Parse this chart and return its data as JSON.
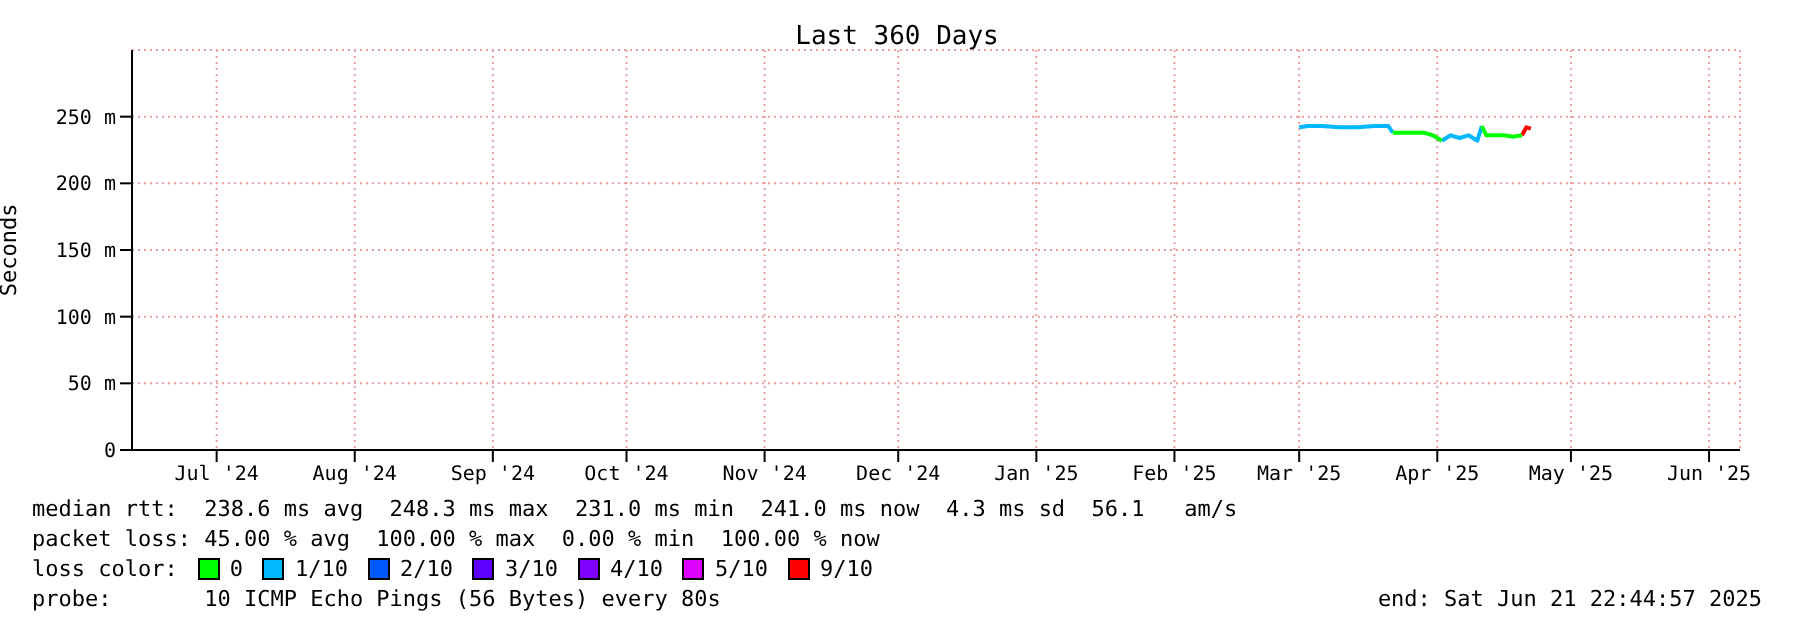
{
  "chart_data": {
    "type": "line",
    "title": "Last 360 Days",
    "ylabel": "Seconds",
    "x": [
      "2025-03-15",
      "2025-03-17",
      "2025-03-20",
      "2025-03-24",
      "2025-03-28",
      "2025-04-01",
      "2025-04-04",
      "2025-04-05",
      "2025-04-08",
      "2025-04-12",
      "2025-04-14",
      "2025-04-16",
      "2025-04-18",
      "2025-04-20",
      "2025-04-22",
      "2025-04-24",
      "2025-04-25",
      "2025-04-26",
      "2025-04-28",
      "2025-04-30",
      "2025-05-02",
      "2025-05-04",
      "2025-05-05",
      "2025-05-06"
    ],
    "series": [
      {
        "name": "0",
        "color": "#00ff00",
        "values": [
          null,
          null,
          null,
          null,
          null,
          null,
          null,
          238,
          238,
          238,
          236,
          232,
          null,
          null,
          null,
          null,
          243,
          236,
          236,
          236,
          235,
          236,
          null,
          null
        ]
      },
      {
        "name": "1/10",
        "color": "#00b8ff",
        "values": [
          242,
          243,
          243,
          242,
          242,
          243,
          243,
          238,
          null,
          null,
          null,
          232,
          236,
          234,
          236,
          232,
          243,
          null,
          null,
          null,
          null,
          null,
          null,
          null
        ]
      },
      {
        "name": "2/10",
        "color": "#0059ff",
        "values": [
          null,
          null,
          null,
          null,
          null,
          null,
          null,
          null,
          null,
          null,
          null,
          null,
          null,
          null,
          null,
          null,
          null,
          null,
          null,
          null,
          null,
          null,
          null,
          null
        ]
      },
      {
        "name": "3/10",
        "color": "#5e00ff",
        "values": [
          null,
          null,
          null,
          null,
          null,
          null,
          null,
          null,
          null,
          null,
          null,
          null,
          null,
          null,
          null,
          null,
          null,
          null,
          null,
          null,
          null,
          null,
          null,
          null
        ]
      },
      {
        "name": "4/10",
        "color": "#7e00ff",
        "values": [
          null,
          null,
          null,
          null,
          null,
          null,
          null,
          null,
          null,
          null,
          null,
          null,
          null,
          null,
          null,
          null,
          null,
          null,
          null,
          null,
          null,
          null,
          null,
          null
        ]
      },
      {
        "name": "5/10",
        "color": "#dd00ff",
        "values": [
          null,
          null,
          null,
          null,
          null,
          null,
          null,
          null,
          null,
          null,
          null,
          null,
          null,
          null,
          null,
          null,
          null,
          null,
          null,
          null,
          null,
          null,
          null,
          null
        ]
      },
      {
        "name": "9/10",
        "color": "#ff0000",
        "values": [
          null,
          null,
          null,
          null,
          null,
          null,
          null,
          null,
          null,
          null,
          null,
          null,
          null,
          null,
          null,
          null,
          null,
          null,
          null,
          null,
          null,
          236,
          242,
          241
        ]
      }
    ],
    "xlim": [
      "2024-06-26",
      "2025-06-21T22:44"
    ],
    "xticks": [
      {
        "value": "2024-07-15",
        "label": "Jul '24"
      },
      {
        "value": "2024-08-15",
        "label": "Aug '24"
      },
      {
        "value": "2024-09-15",
        "label": "Sep '24"
      },
      {
        "value": "2024-10-15",
        "label": "Oct '24"
      },
      {
        "value": "2024-11-15",
        "label": "Nov '24"
      },
      {
        "value": "2024-12-15",
        "label": "Dec '24"
      },
      {
        "value": "2025-01-15",
        "label": "Jan '25"
      },
      {
        "value": "2025-02-15",
        "label": "Feb '25"
      },
      {
        "value": "2025-03-15",
        "label": "Mar '25"
      },
      {
        "value": "2025-04-15",
        "label": "Apr '25"
      },
      {
        "value": "2025-05-15",
        "label": "May '25"
      },
      {
        "value": "2025-06-15",
        "label": "Jun '25"
      }
    ],
    "ylim": [
      0,
      300
    ],
    "yticks": [
      0,
      {
        "value": 50,
        "label": "50 m"
      },
      {
        "value": 100,
        "label": "100 m"
      },
      {
        "value": 150,
        "label": "150 m"
      },
      {
        "value": 200,
        "label": "200 m"
      },
      {
        "value": 250,
        "label": "250 m"
      }
    ],
    "grid": true,
    "legend": "bottom",
    "marker": "none",
    "line_style": "solid",
    "annotations": [
      "median rtt:  238.6 ms avg  248.3 ms max  231.0 ms min  241.0 ms now  4.3 ms sd  56.1   am/s",
      "packet loss: 45.00 % avg  100.00 % max  0.00 % min  100.00 % now",
      "loss color:",
      "probe:       10 ICMP Echo Pings (56 Bytes) every 80s",
      "end: Sat Jun 21 22:44:57 2025"
    ]
  }
}
